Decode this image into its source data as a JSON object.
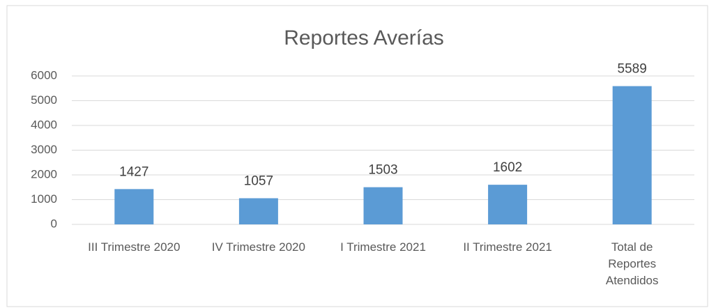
{
  "chart_data": {
    "type": "bar",
    "title": "Reportes Averías",
    "categories": [
      "III Trimestre 2020",
      "IV Trimestre 2020",
      "I Trimestre 2021",
      "II Trimestre 2021",
      "Total de Reportes Atendidos"
    ],
    "values": [
      1427,
      1057,
      1503,
      1602,
      5589
    ],
    "color": "#5b9bd5",
    "ylim": [
      0,
      6000
    ],
    "yticks": [
      0,
      1000,
      2000,
      3000,
      4000,
      5000,
      6000
    ],
    "grid": true
  }
}
